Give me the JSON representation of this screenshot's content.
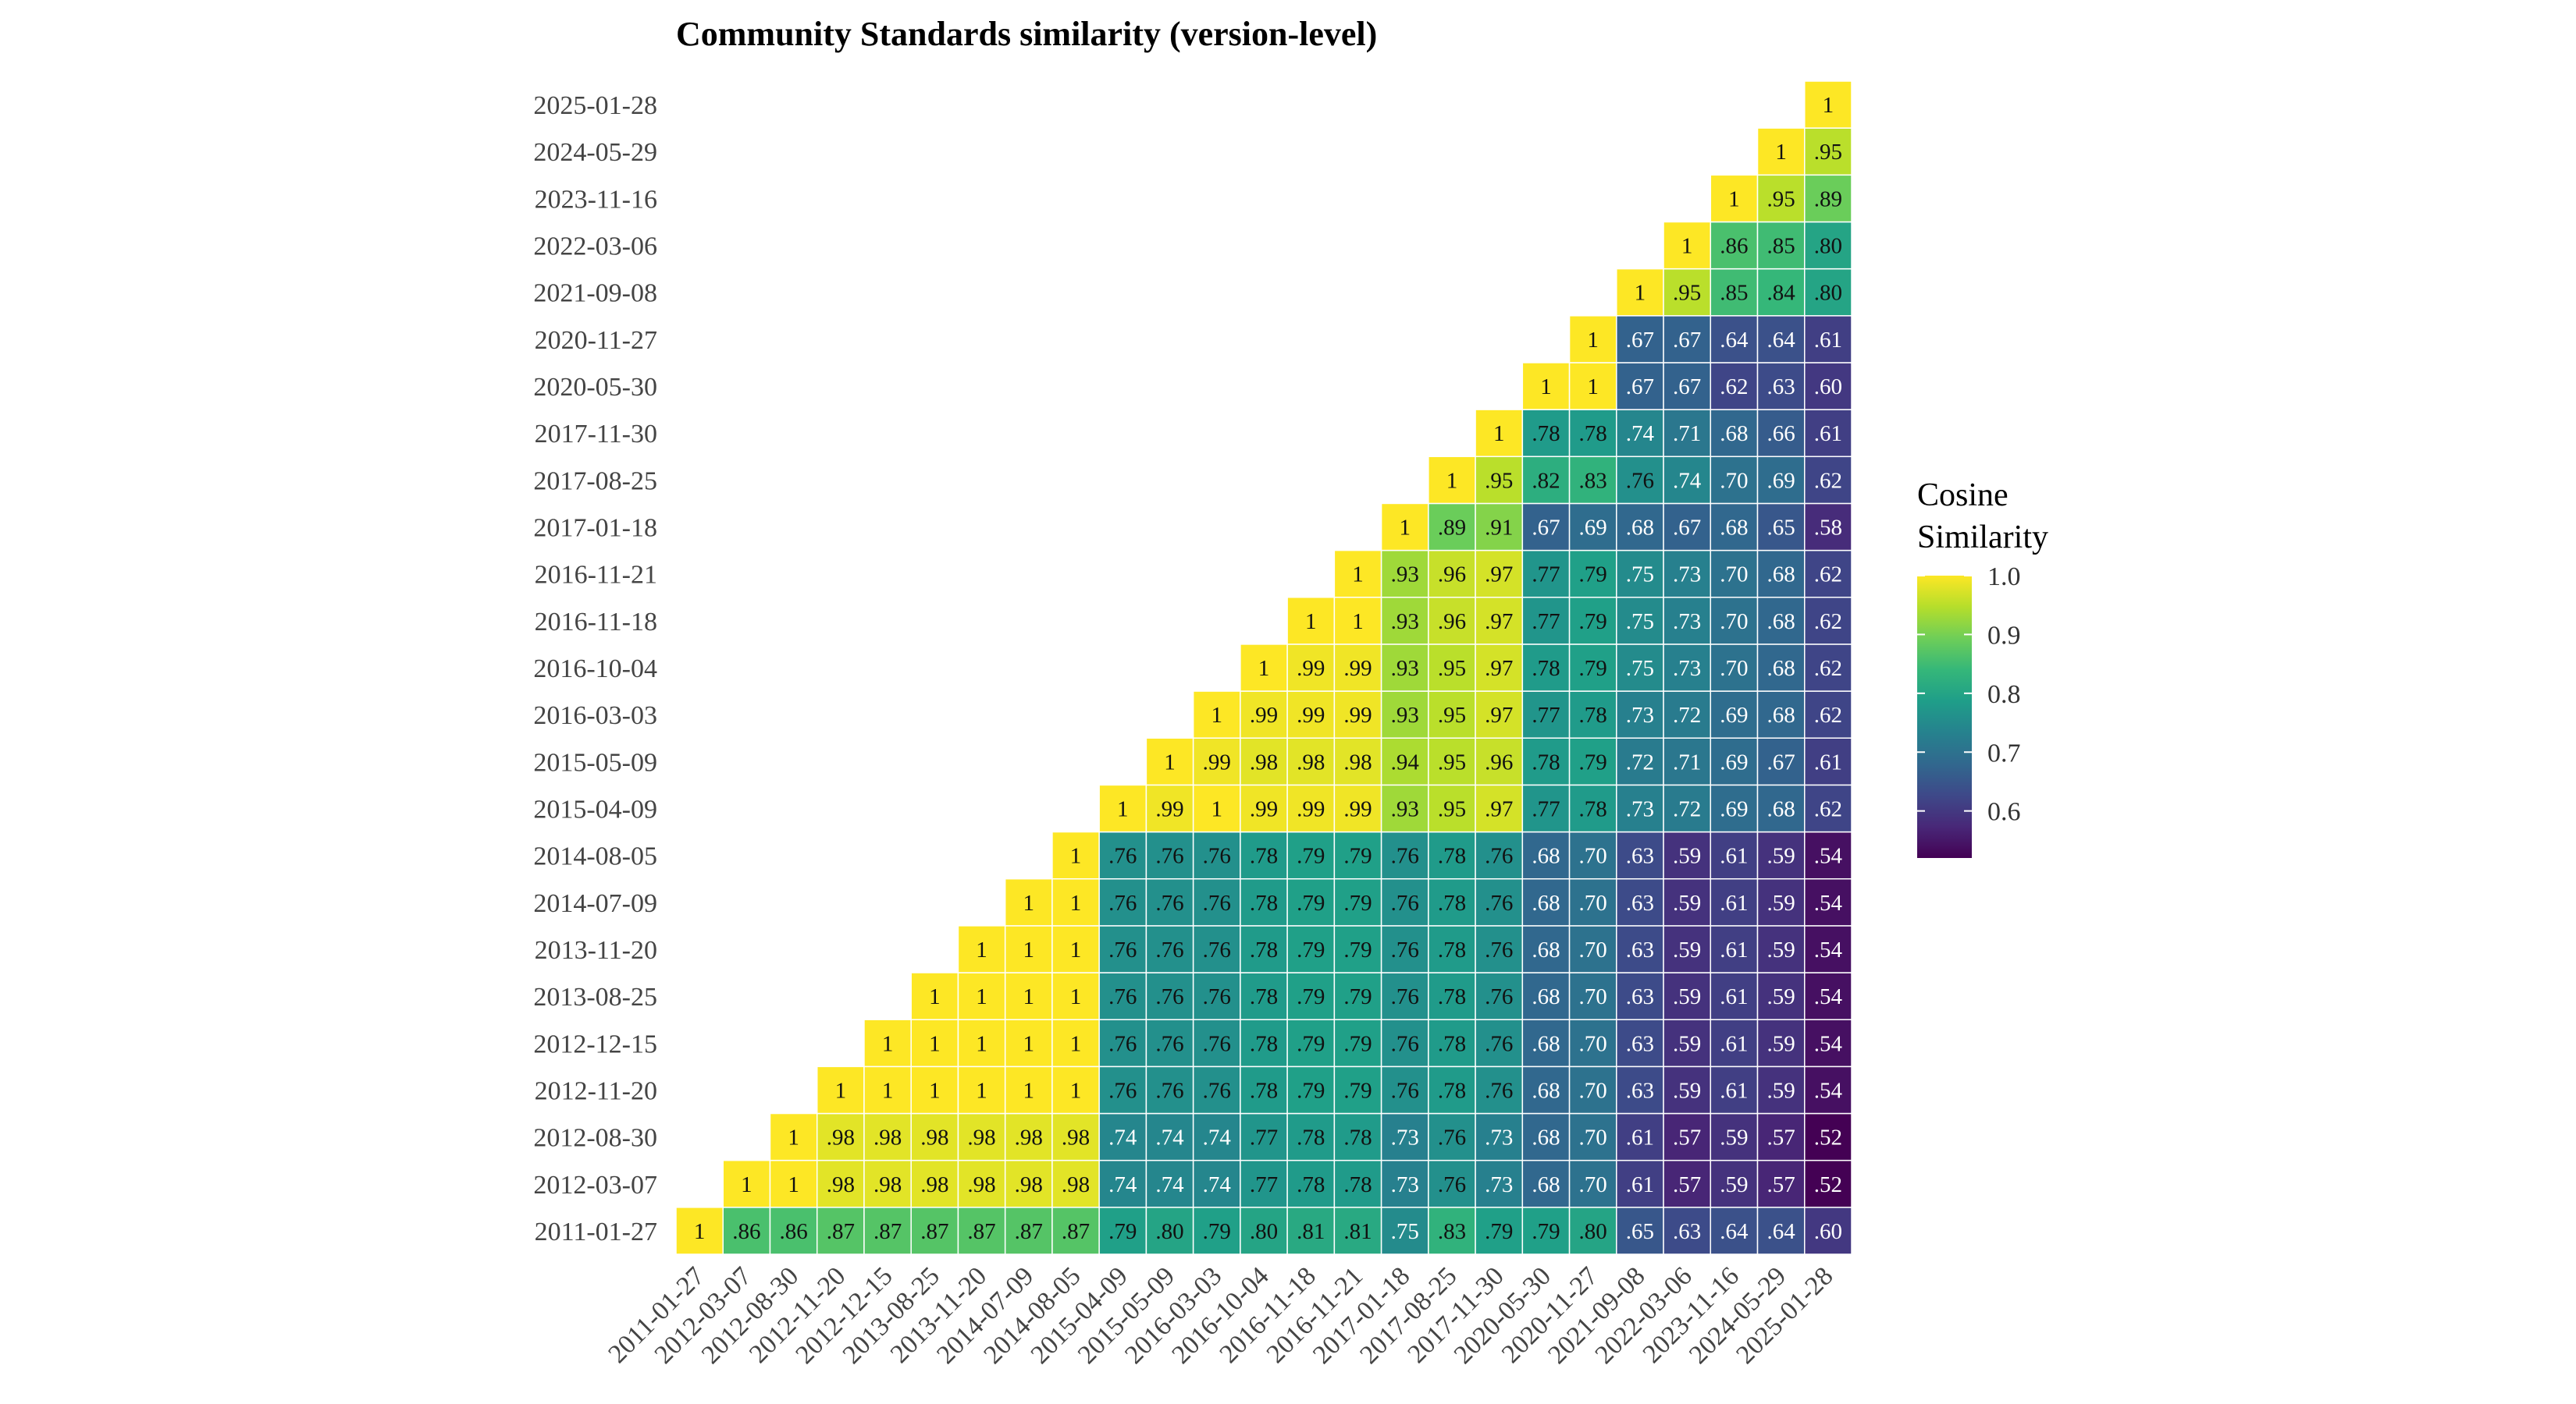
{
  "chart_data": {
    "type": "heatmap",
    "title": "Community Standards similarity (version-level)",
    "xlabel": "",
    "ylabel": "",
    "categories": [
      "2011-01-27",
      "2012-03-07",
      "2012-08-30",
      "2012-11-20",
      "2012-12-15",
      "2013-08-25",
      "2013-11-20",
      "2014-07-09",
      "2014-08-05",
      "2015-04-09",
      "2015-05-09",
      "2016-03-03",
      "2016-10-04",
      "2016-11-18",
      "2016-11-21",
      "2017-01-18",
      "2017-08-25",
      "2017-11-30",
      "2020-05-30",
      "2020-11-27",
      "2021-09-08",
      "2022-03-06",
      "2023-11-16",
      "2024-05-29",
      "2025-01-28"
    ],
    "rows": [
      {
        "y": "2011-01-27",
        "values": [
          "1",
          ".86",
          ".86",
          ".87",
          ".87",
          ".87",
          ".87",
          ".87",
          ".87",
          ".79",
          ".80",
          ".79",
          ".80",
          ".81",
          ".81",
          ".75",
          ".83",
          ".79",
          ".79",
          ".80",
          ".65",
          ".63",
          ".64",
          ".64",
          ".60"
        ]
      },
      {
        "y": "2012-03-07",
        "values": [
          "1",
          "1",
          ".98",
          ".98",
          ".98",
          ".98",
          ".98",
          ".98",
          ".74",
          ".74",
          ".74",
          ".77",
          ".78",
          ".78",
          ".73",
          ".76",
          ".73",
          ".68",
          ".70",
          ".61",
          ".57",
          ".59",
          ".57",
          ".52"
        ]
      },
      {
        "y": "2012-08-30",
        "values": [
          "1",
          ".98",
          ".98",
          ".98",
          ".98",
          ".98",
          ".98",
          ".74",
          ".74",
          ".74",
          ".77",
          ".78",
          ".78",
          ".73",
          ".76",
          ".73",
          ".68",
          ".70",
          ".61",
          ".57",
          ".59",
          ".57",
          ".52"
        ]
      },
      {
        "y": "2012-11-20",
        "values": [
          "1",
          "1",
          "1",
          "1",
          "1",
          "1",
          ".76",
          ".76",
          ".76",
          ".78",
          ".79",
          ".79",
          ".76",
          ".78",
          ".76",
          ".68",
          ".70",
          ".63",
          ".59",
          ".61",
          ".59",
          ".54"
        ]
      },
      {
        "y": "2012-12-15",
        "values": [
          "1",
          "1",
          "1",
          "1",
          "1",
          ".76",
          ".76",
          ".76",
          ".78",
          ".79",
          ".79",
          ".76",
          ".78",
          ".76",
          ".68",
          ".70",
          ".63",
          ".59",
          ".61",
          ".59",
          ".54"
        ]
      },
      {
        "y": "2013-08-25",
        "values": [
          "1",
          "1",
          "1",
          "1",
          ".76",
          ".76",
          ".76",
          ".78",
          ".79",
          ".79",
          ".76",
          ".78",
          ".76",
          ".68",
          ".70",
          ".63",
          ".59",
          ".61",
          ".59",
          ".54"
        ]
      },
      {
        "y": "2013-11-20",
        "values": [
          "1",
          "1",
          "1",
          ".76",
          ".76",
          ".76",
          ".78",
          ".79",
          ".79",
          ".76",
          ".78",
          ".76",
          ".68",
          ".70",
          ".63",
          ".59",
          ".61",
          ".59",
          ".54"
        ]
      },
      {
        "y": "2014-07-09",
        "values": [
          "1",
          "1",
          ".76",
          ".76",
          ".76",
          ".78",
          ".79",
          ".79",
          ".76",
          ".78",
          ".76",
          ".68",
          ".70",
          ".63",
          ".59",
          ".61",
          ".59",
          ".54"
        ]
      },
      {
        "y": "2014-08-05",
        "values": [
          "1",
          ".76",
          ".76",
          ".76",
          ".78",
          ".79",
          ".79",
          ".76",
          ".78",
          ".76",
          ".68",
          ".70",
          ".63",
          ".59",
          ".61",
          ".59",
          ".54"
        ]
      },
      {
        "y": "2015-04-09",
        "values": [
          "1",
          ".99",
          "1",
          ".99",
          ".99",
          ".99",
          ".93",
          ".95",
          ".97",
          ".77",
          ".78",
          ".73",
          ".72",
          ".69",
          ".68",
          ".62"
        ]
      },
      {
        "y": "2015-05-09",
        "values": [
          "1",
          ".99",
          ".98",
          ".98",
          ".98",
          ".94",
          ".95",
          ".96",
          ".78",
          ".79",
          ".72",
          ".71",
          ".69",
          ".67",
          ".61"
        ]
      },
      {
        "y": "2016-03-03",
        "values": [
          "1",
          ".99",
          ".99",
          ".99",
          ".93",
          ".95",
          ".97",
          ".77",
          ".78",
          ".73",
          ".72",
          ".69",
          ".68",
          ".62"
        ]
      },
      {
        "y": "2016-10-04",
        "values": [
          "1",
          ".99",
          ".99",
          ".93",
          ".95",
          ".97",
          ".78",
          ".79",
          ".75",
          ".73",
          ".70",
          ".68",
          ".62"
        ]
      },
      {
        "y": "2016-11-18",
        "values": [
          "1",
          "1",
          ".93",
          ".96",
          ".97",
          ".77",
          ".79",
          ".75",
          ".73",
          ".70",
          ".68",
          ".62"
        ]
      },
      {
        "y": "2016-11-21",
        "values": [
          "1",
          ".93",
          ".96",
          ".97",
          ".77",
          ".79",
          ".75",
          ".73",
          ".70",
          ".68",
          ".62"
        ]
      },
      {
        "y": "2017-01-18",
        "values": [
          "1",
          ".89",
          ".91",
          ".67",
          ".69",
          ".68",
          ".67",
          ".68",
          ".65",
          ".58"
        ]
      },
      {
        "y": "2017-08-25",
        "values": [
          "1",
          ".95",
          ".82",
          ".83",
          ".76",
          ".74",
          ".70",
          ".69",
          ".62"
        ]
      },
      {
        "y": "2017-11-30",
        "values": [
          "1",
          ".78",
          ".78",
          ".74",
          ".71",
          ".68",
          ".66",
          ".61"
        ]
      },
      {
        "y": "2020-05-30",
        "values": [
          "1",
          "1",
          ".67",
          ".67",
          ".62",
          ".63",
          ".60"
        ]
      },
      {
        "y": "2020-11-27",
        "values": [
          "1",
          ".67",
          ".67",
          ".64",
          ".64",
          ".61"
        ]
      },
      {
        "y": "2021-09-08",
        "values": [
          "1",
          ".95",
          ".85",
          ".84",
          ".80"
        ]
      },
      {
        "y": "2022-03-06",
        "values": [
          "1",
          ".86",
          ".85",
          ".80"
        ]
      },
      {
        "y": "2023-11-16",
        "values": [
          "1",
          ".95",
          ".89"
        ]
      },
      {
        "y": "2024-05-29",
        "values": [
          "1",
          ".95"
        ]
      },
      {
        "y": "2025-01-28",
        "values": [
          "1"
        ]
      }
    ],
    "legend": {
      "title": [
        "Cosine",
        "Similarity"
      ],
      "ticks": [
        "1.0",
        "0.9",
        "0.8",
        "0.7",
        "0.6"
      ],
      "tick_values": [
        1.0,
        0.9,
        0.8,
        0.7,
        0.6
      ],
      "range": [
        0.52,
        1.0
      ],
      "placement": "right"
    },
    "colormap": [
      "#440154",
      "#482878",
      "#3e4989",
      "#31688e",
      "#26828e",
      "#1f9e89",
      "#35b779",
      "#6ece58",
      "#b5de2b",
      "#fde725"
    ],
    "grid": false
  }
}
